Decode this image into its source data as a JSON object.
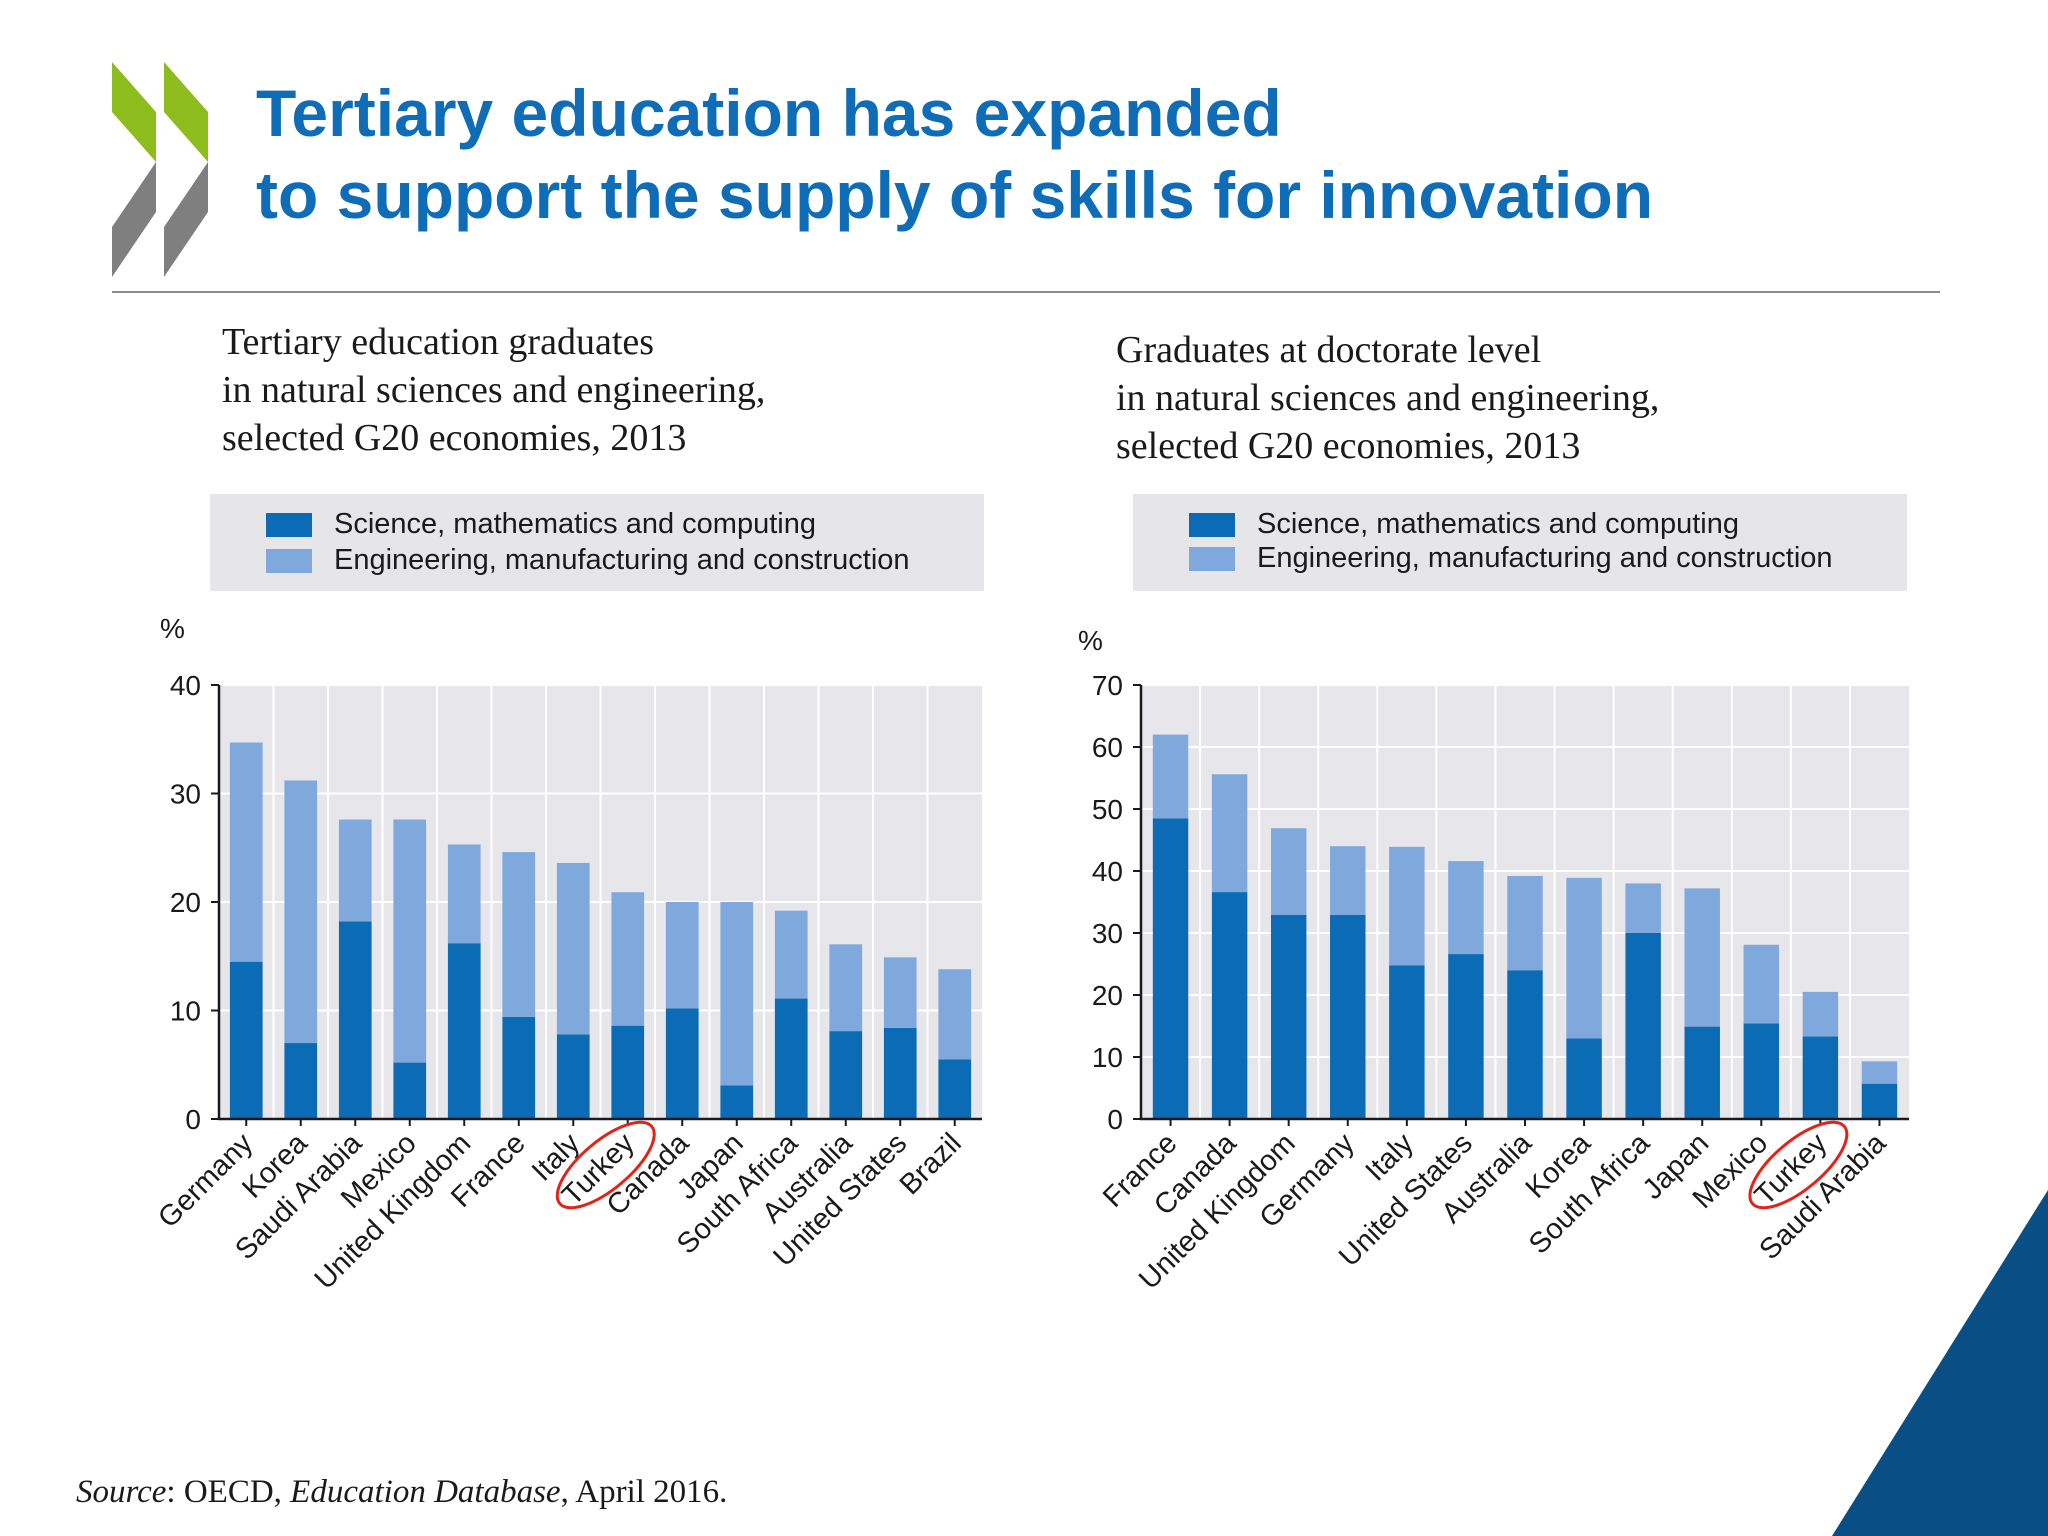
{
  "title": {
    "line1": "Tertiary education has expanded",
    "line2": "to support the supply of skills for innovation"
  },
  "colors": {
    "title": "#0f6cb6",
    "series_science": "#0b6bb5",
    "series_engineering": "#7fa9dc",
    "plot_background": "#e7e6ea",
    "highlight": "#e2231a",
    "logo_green": "#8cbd1c",
    "logo_grey": "#7f7f7f",
    "corner_blue": "#0a4e86"
  },
  "highlight_category": "Turkey",
  "chart_data": [
    {
      "type": "bar",
      "stacked": true,
      "title": "Tertiary education graduates\nin natural sciences and engineering,\nselected G20 economies, 2013",
      "ylabel": "%",
      "xlabel": "",
      "ylim": [
        0,
        40
      ],
      "yticks": [
        0,
        10,
        20,
        30,
        40
      ],
      "grid": true,
      "legend_position": "top",
      "categories": [
        "Germany",
        "Korea",
        "Saudi Arabia",
        "Mexico",
        "United Kingdom",
        "France",
        "Italy",
        "Turkey",
        "Canada",
        "Japan",
        "South Africa",
        "Australia",
        "United States",
        "Brazil"
      ],
      "series": [
        {
          "name": "Science, mathematics and computing",
          "values": [
            14.5,
            7,
            18.2,
            5.2,
            16.2,
            9.4,
            7.8,
            8.6,
            10.2,
            3.1,
            11.1,
            8.1,
            8.4,
            5.5
          ]
        },
        {
          "name": "Engineering, manufacturing and construction",
          "values": [
            20.2,
            24.2,
            9.4,
            22.4,
            9.1,
            15.2,
            15.8,
            12.3,
            9.8,
            16.9,
            8.1,
            8.0,
            6.5,
            8.3
          ]
        }
      ]
    },
    {
      "type": "bar",
      "stacked": true,
      "title": "Graduates at doctorate level\nin natural sciences and engineering,\nselected G20 economies, 2013",
      "ylabel": "%",
      "xlabel": "",
      "ylim": [
        0,
        70
      ],
      "yticks": [
        0,
        10,
        20,
        30,
        40,
        50,
        60,
        70
      ],
      "grid": true,
      "legend_position": "top",
      "categories": [
        "France",
        "Canada",
        "United Kingdom",
        "Germany",
        "Italy",
        "United States",
        "Australia",
        "Korea",
        "South Africa",
        "Japan",
        "Mexico",
        "Turkey",
        "Saudi Arabia"
      ],
      "series": [
        {
          "name": "Science, mathematics and computing",
          "values": [
            48.5,
            36.6,
            32.9,
            32.9,
            24.8,
            26.6,
            24.0,
            13.0,
            30.0,
            14.9,
            15.4,
            13.3,
            5.7
          ]
        },
        {
          "name": "Engineering, manufacturing and construction",
          "values": [
            13.5,
            19.0,
            14.0,
            11.1,
            19.1,
            15.0,
            15.2,
            25.9,
            8.0,
            22.3,
            12.7,
            7.2,
            3.6
          ]
        }
      ]
    }
  ],
  "source": {
    "label": "Source",
    "text_before": ": OECD, ",
    "database": "Education Database",
    "text_after": ", April 2016."
  }
}
